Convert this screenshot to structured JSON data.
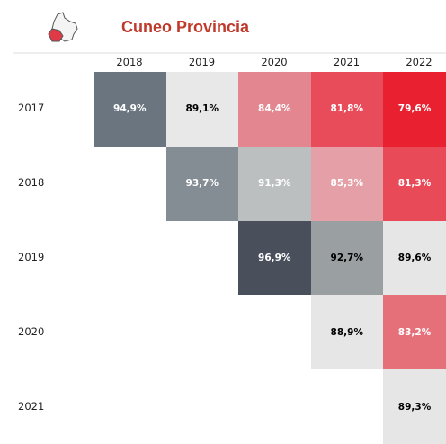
{
  "header": {
    "title": "Cuneo Provincia"
  },
  "table": {
    "columns": [
      "2018",
      "2019",
      "2020",
      "2021",
      "2022"
    ],
    "rows": [
      {
        "label": "2017",
        "cells": [
          {
            "text": "94,9%",
            "color": "#6b7580",
            "text_color": "#ffffff"
          },
          {
            "text": "89,1%",
            "color": "#e8e8e8",
            "text_color": "#000000"
          },
          {
            "text": "84,4%",
            "color": "#e4868f",
            "text_color": "#ffffff"
          },
          {
            "text": "81,8%",
            "color": "#e84c5a",
            "text_color": "#ffffff"
          },
          {
            "text": "79,6%",
            "color": "#e8202f",
            "text_color": "#ffffff"
          }
        ]
      },
      {
        "label": "2018",
        "cells": [
          null,
          {
            "text": "93,7%",
            "color": "#858d94",
            "text_color": "#ffffff"
          },
          {
            "text": "91,3%",
            "color": "#bcbfc0",
            "text_color": "#ffffff"
          },
          {
            "text": "85,3%",
            "color": "#e4a0a6",
            "text_color": "#ffffff"
          },
          {
            "text": "81,3%",
            "color": "#e84a58",
            "text_color": "#ffffff"
          }
        ]
      },
      {
        "label": "2019",
        "cells": [
          null,
          null,
          {
            "text": "96,9%",
            "color": "#4a4f5c",
            "text_color": "#ffffff"
          },
          {
            "text": "92,7%",
            "color": "#9aa0a2",
            "text_color": "#000000"
          },
          {
            "text": "89,6%",
            "color": "#e6e6e6",
            "text_color": "#000000"
          }
        ]
      },
      {
        "label": "2020",
        "cells": [
          null,
          null,
          null,
          {
            "text": "88,9%",
            "color": "#e6e6e6",
            "text_color": "#000000"
          },
          {
            "text": "83,2%",
            "color": "#e6707a",
            "text_color": "#ffffff"
          }
        ]
      },
      {
        "label": "2021",
        "cells": [
          null,
          null,
          null,
          null,
          {
            "text": "89,3%",
            "color": "#e6e6e6",
            "text_color": "#000000"
          }
        ]
      }
    ]
  }
}
